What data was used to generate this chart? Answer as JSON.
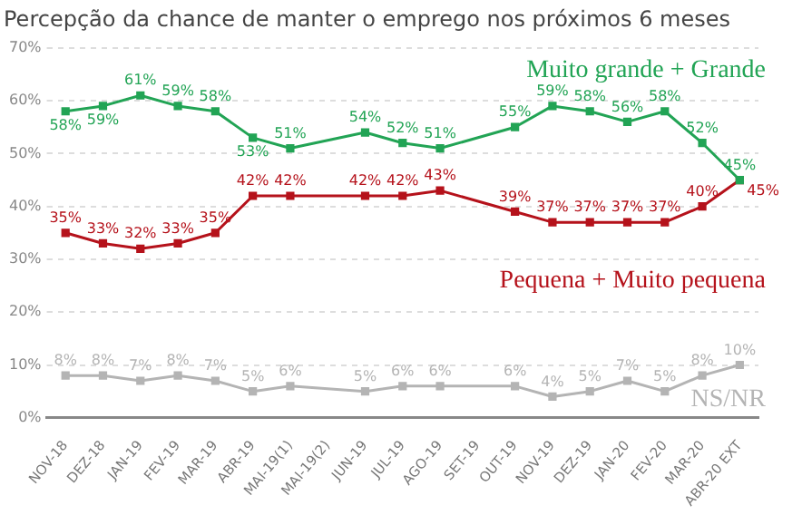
{
  "chart_data": {
    "type": "line",
    "title": "Percepção da chance de manter o emprego nos próximos 6 meses",
    "categories": [
      "NOV-18",
      "DEZ-18",
      "JAN-19",
      "FEV-19",
      "MAR-19",
      "ABR-19",
      "MAI-19(1)",
      "MAI-19(2)",
      "JUN-19",
      "JUL-19",
      "AGO-19",
      "SET-19",
      "OUT-19",
      "NOV-19",
      "DEZ-19",
      "JAN-20",
      "FEV-20",
      "MAR-20",
      "ABR-20 EXT"
    ],
    "series": [
      {
        "name": "Muito grande + Grande",
        "color": "#22a455",
        "values": [
          58,
          59,
          61,
          59,
          58,
          53,
          51,
          null,
          54,
          52,
          51,
          null,
          55,
          59,
          58,
          56,
          58,
          52,
          45
        ],
        "value_labels": [
          "58%",
          "59%",
          "61%",
          "59%",
          "58%",
          "53%",
          "51%",
          null,
          "54%",
          "52%",
          "51%",
          null,
          "55%",
          "59%",
          "58%",
          "56%",
          "58%",
          "52%",
          "45%"
        ]
      },
      {
        "name": "Pequena + Muito pequena",
        "color": "#b5121b",
        "values": [
          35,
          33,
          32,
          33,
          35,
          42,
          42,
          null,
          42,
          42,
          43,
          null,
          39,
          37,
          37,
          37,
          37,
          40,
          45
        ],
        "value_labels": [
          "35%",
          "33%",
          "32%",
          "33%",
          "35%",
          "42%",
          "42%",
          null,
          "42%",
          "42%",
          "43%",
          null,
          "39%",
          "37%",
          "37%",
          "37%",
          "37%",
          "40%",
          "45%"
        ]
      },
      {
        "name": "NS/NR",
        "color": "#b4b4b4",
        "values": [
          8,
          8,
          7,
          8,
          7,
          5,
          6,
          null,
          5,
          6,
          6,
          null,
          6,
          4,
          5,
          7,
          5,
          8,
          10
        ],
        "value_labels": [
          "8%",
          "8%",
          "7%",
          "8%",
          "7%",
          "5%",
          "6%",
          null,
          "5%",
          "6%",
          "6%",
          null,
          "6%",
          "4%",
          "5%",
          "7%",
          "5%",
          "8%",
          "10%"
        ]
      }
    ],
    "ylim": [
      0,
      70
    ],
    "yticks": [
      {
        "value": 0,
        "label": "0%"
      },
      {
        "value": 10,
        "label": "10%"
      },
      {
        "value": 20,
        "label": "20%"
      },
      {
        "value": 30,
        "label": "30%"
      },
      {
        "value": 40,
        "label": "40%"
      },
      {
        "value": 50,
        "label": "50%"
      },
      {
        "value": 60,
        "label": "60%"
      },
      {
        "value": 70,
        "label": "70%"
      }
    ],
    "grid": "y",
    "legend": false,
    "marker": "square",
    "line_style": "solid"
  }
}
